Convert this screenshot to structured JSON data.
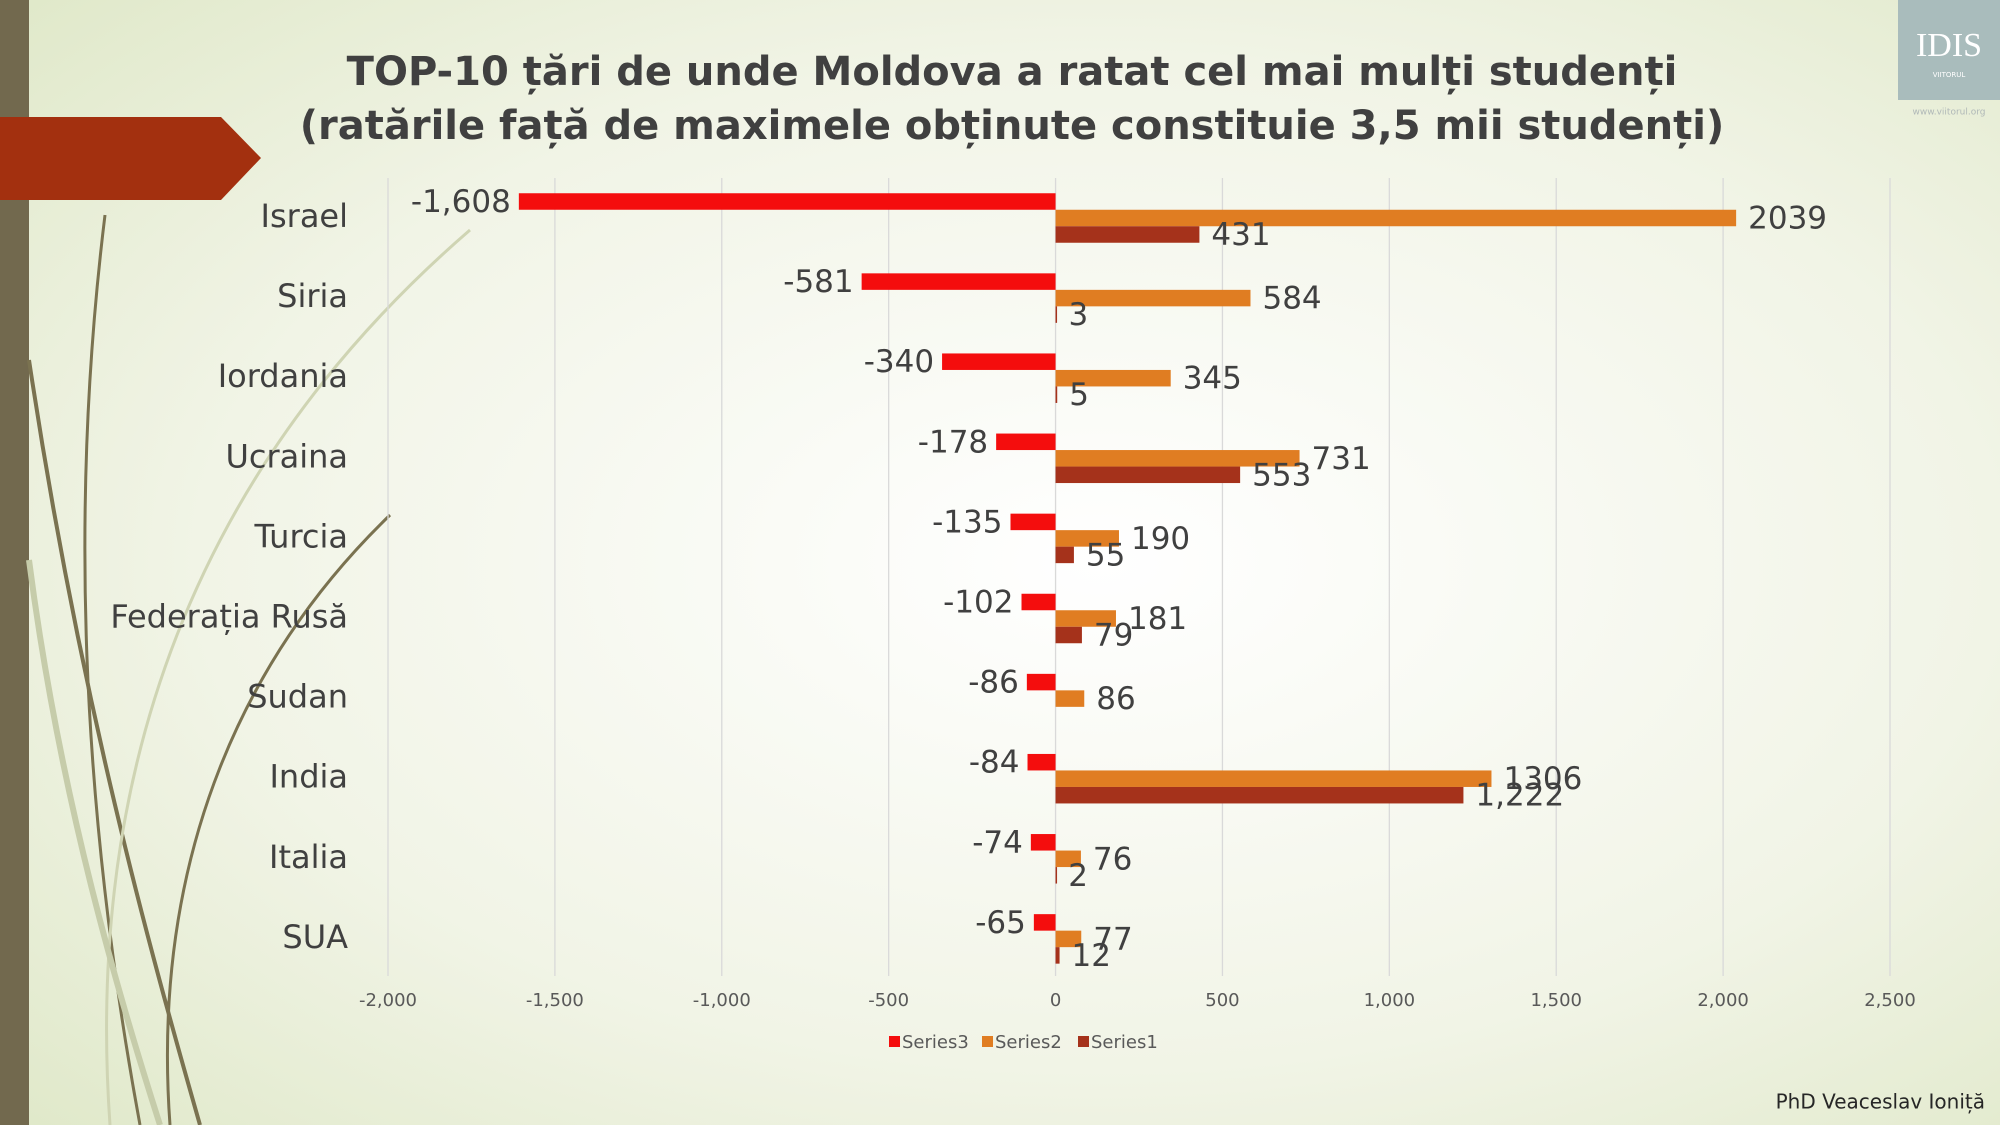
{
  "chart_data": {
    "type": "hbar",
    "title": "TOP-10 țări de unde Moldova a ratat cel mai mulți studenți",
    "subtitle": "(ratările față de maximele obținute constituie 3,5 mii studenți)",
    "categories": [
      "Israel",
      "Siria",
      "Iordania",
      "Ucraina",
      "Turcia",
      "Federația Rusă",
      "Sudan",
      "India",
      "Italia",
      "SUA"
    ],
    "series": [
      {
        "name": "Series3",
        "color": "#f40d0d",
        "values": [
          -1608,
          -581,
          -340,
          -178,
          -135,
          -102,
          -86,
          -84,
          -74,
          -65
        ],
        "value_labels": [
          "-1,608",
          "-581",
          "-340",
          "-178",
          "-135",
          "-102",
          "-86",
          "-84",
          "-74",
          "-65"
        ]
      },
      {
        "name": "Series2",
        "color": "#e07d22",
        "values": [
          2039,
          584,
          345,
          731,
          190,
          181,
          86,
          1306,
          76,
          77
        ]
      },
      {
        "name": "Series1",
        "color": "#a5321b",
        "values": [
          431,
          3,
          5,
          553,
          55,
          79,
          null,
          1222,
          2,
          12
        ],
        "value_labels": [
          "431",
          "3",
          "5",
          "553",
          "55",
          "79",
          null,
          "1,222",
          "2",
          "12"
        ]
      }
    ],
    "xlim": [
      -2000,
      2500
    ],
    "xticks": [
      {
        "value": -2000,
        "label": "-2,000"
      },
      {
        "value": -1500,
        "label": "-1,500"
      },
      {
        "value": -1000,
        "label": "-1,000"
      },
      -500,
      0,
      500,
      {
        "value": 1000,
        "label": "1,000"
      },
      {
        "value": 1500,
        "label": "1,500"
      },
      {
        "value": 2000,
        "label": "2,000"
      },
      {
        "value": 2500,
        "label": "2,500"
      }
    ],
    "grid": true,
    "legend": "bottom"
  },
  "logo": {
    "name": "IDIS",
    "subtitle": "VIITORUL",
    "url": "www.viitorul.org"
  },
  "footer": "PhD Veaceslav Ioniță"
}
